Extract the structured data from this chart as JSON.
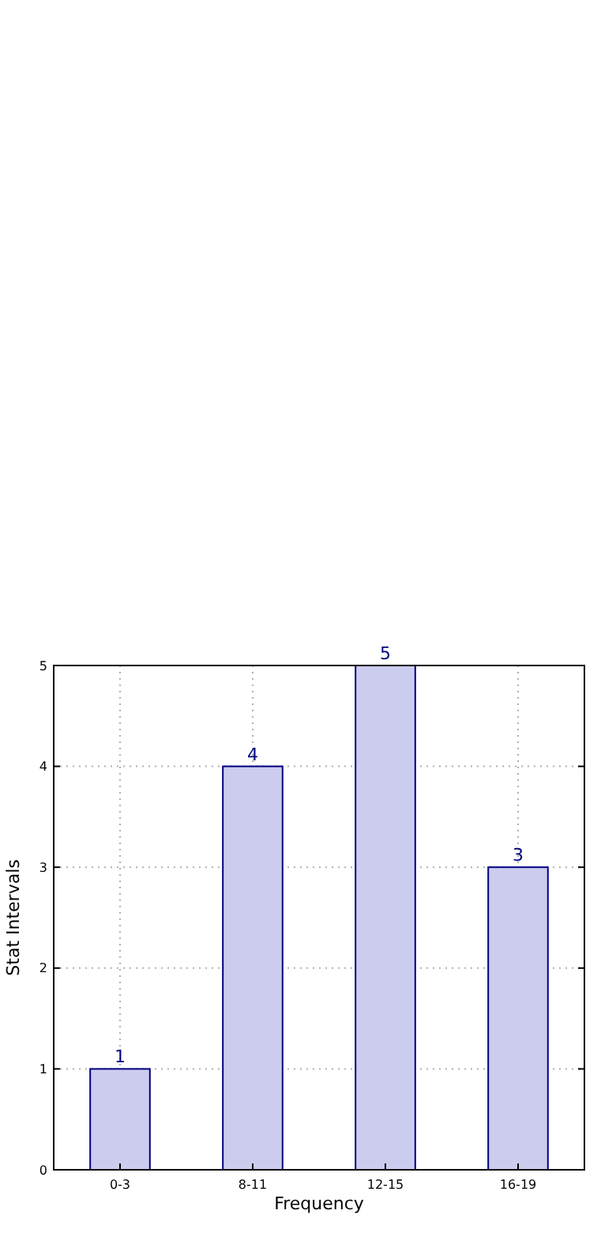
{
  "chart_data": {
    "type": "bar",
    "xlabel": "Frequency",
    "ylabel": "Stat Intervals",
    "categories": [
      "0-3",
      "8-11",
      "12-15",
      "16-19"
    ],
    "values": [
      1,
      4,
      5,
      3
    ],
    "color": "#ccccee",
    "ylim": [
      0,
      5
    ],
    "yticks": [
      0,
      1,
      2,
      3,
      4,
      5
    ],
    "grid": true,
    "data_labels": true
  }
}
